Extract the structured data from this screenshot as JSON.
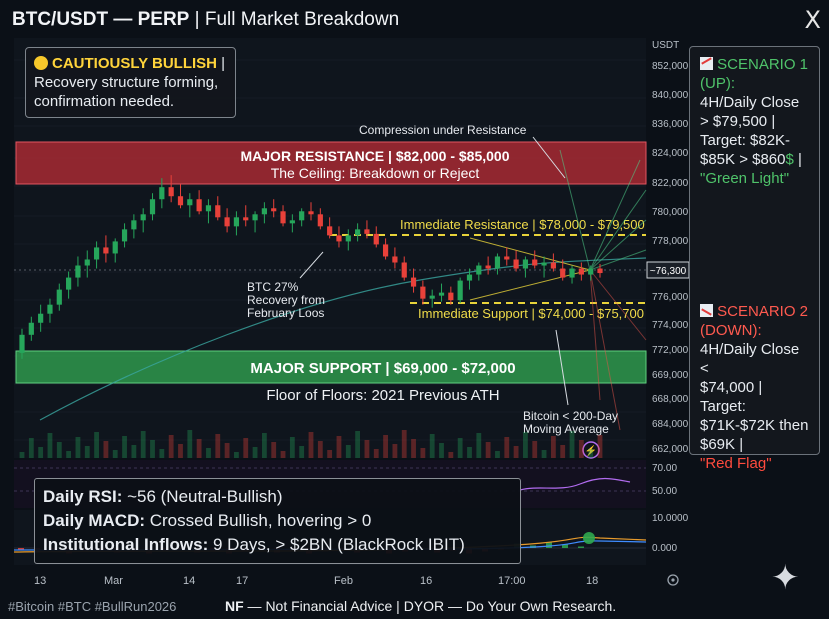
{
  "header": {
    "title_bold": "BTC/USDT — PERP",
    "title_rest": " | Full Market Breakdown",
    "x_logo": "X"
  },
  "sentiment": {
    "icon": "yellow-circle-icon",
    "label": "CAUTIOUSLY BULLISH",
    "sep": " |",
    "line1": "Recovery structure forming,",
    "line2": "confirmation needed."
  },
  "scenario_up": {
    "icon": "chart-up-icon",
    "head1": "SCENARIO 1",
    "head2": "(UP):",
    "line1": "4H/Daily Close",
    "line2": "> $79,500 |",
    "line3": "Target: $82K-",
    "line4a": "$85K > $860",
    "line4b": "$",
    "line4c": " |",
    "tag": "\"Green Light\""
  },
  "scenario_down": {
    "icon": "chart-down-icon",
    "head1": "SCENARIO 2",
    "head2": "(DOWN):",
    "line1": "4H/Daily Close <",
    "line2": "$74,000 | Target:",
    "line3": "$71K-$72K then",
    "line4": "$69K |",
    "tag": "\"Red Flag\""
  },
  "indicators": {
    "rsi_label": "Daily RSI:",
    "rsi_value": " ~56 (Neutral-Bullish)",
    "macd_label": "Daily MACD:",
    "macd_value": " Crossed Bullish, hovering > 0",
    "inflow_label": "Institutional Inflows:",
    "inflow_value": " 9 Days, > $2BN (BlackRock IBIT)"
  },
  "footer": {
    "tags": "#Bitcoin #BTC #BullRun2026",
    "nf_bold": "NF",
    "nf_rest": " — Not Financial Advice | DYOR — Do Your Own Research."
  },
  "colors": {
    "background": "#0b1017",
    "bull": "#26a65b",
    "bear": "#e8413a",
    "resistance_zone": "#c0313a",
    "support_zone": "#2d9a4c",
    "dashed": "#e8d33a",
    "scenario_up": "#4fc36a",
    "scenario_down": "#ff5a4f"
  },
  "chart_data": {
    "type": "candlestick",
    "instrument": "BTC/USDT — PERP",
    "price_axis_label": "USDT",
    "price_ticks": [
      "852,000",
      "840,000",
      "836,000",
      "824,000",
      "822,000",
      "780,000",
      "778,000",
      "776,000",
      "774,000",
      "772,000",
      "669,000",
      "668,000",
      "684,000",
      "662,000"
    ],
    "current_price_label": "~76,300",
    "time_ticks": [
      "13",
      "Mar",
      "14",
      "17",
      "Feb",
      "16",
      "17:00",
      "18"
    ],
    "zones": [
      {
        "name": "resistance",
        "title": "MAJOR RESISTANCE | $82,000 - $85,000",
        "subtitle": "The Ceiling: Breakdown or Reject",
        "low": 82000,
        "high": 85000
      },
      {
        "name": "support",
        "title": "MAJOR SUPPORT | $69,000 - $72,000",
        "subtitle": "Floor of Floors: 2021 Previous ATH",
        "low": 69000,
        "high": 72000
      }
    ],
    "levels": [
      {
        "name": "immediate-resistance",
        "label": "Immediate Resistance | $78,000 - $79,500",
        "value": 79500
      },
      {
        "name": "immediate-support",
        "label": "Immediate Support | $74,000 - $75,700",
        "value": 75700
      }
    ],
    "annotations": [
      {
        "name": "compression",
        "text": "Compression under Resistance"
      },
      {
        "name": "recovery",
        "text": [
          "BTC 27%",
          "Recovery from",
          "February Loos"
        ]
      },
      {
        "name": "ma200",
        "text": [
          "Bitcoin < 200-Day",
          "Moving Average"
        ]
      }
    ],
    "ohlc": [
      [
        71.0,
        72.6,
        70.6,
        72.2
      ],
      [
        72.2,
        73.4,
        71.8,
        73.0
      ],
      [
        73.0,
        74.2,
        72.4,
        73.6
      ],
      [
        73.6,
        74.6,
        73.0,
        74.2
      ],
      [
        74.2,
        75.6,
        73.8,
        75.2
      ],
      [
        75.2,
        76.4,
        74.6,
        76.0
      ],
      [
        76.0,
        77.4,
        75.4,
        76.8
      ],
      [
        76.8,
        77.8,
        76.0,
        77.2
      ],
      [
        77.2,
        78.4,
        76.6,
        78.0
      ],
      [
        78.0,
        78.8,
        77.0,
        77.6
      ],
      [
        77.6,
        78.6,
        77.0,
        78.4
      ],
      [
        78.4,
        79.6,
        78.0,
        79.2
      ],
      [
        79.2,
        80.2,
        78.6,
        79.8
      ],
      [
        79.8,
        80.6,
        79.0,
        80.2
      ],
      [
        80.2,
        81.6,
        79.8,
        81.2
      ],
      [
        81.2,
        82.6,
        80.6,
        82.0
      ],
      [
        82.0,
        82.8,
        81.0,
        81.4
      ],
      [
        81.4,
        82.2,
        80.6,
        80.8
      ],
      [
        80.8,
        81.6,
        80.0,
        81.2
      ],
      [
        81.2,
        81.8,
        80.2,
        80.4
      ],
      [
        80.4,
        81.2,
        79.6,
        80.8
      ],
      [
        80.8,
        81.4,
        79.8,
        80.0
      ],
      [
        80.0,
        80.6,
        79.0,
        79.4
      ],
      [
        79.4,
        80.4,
        78.8,
        80.0
      ],
      [
        80.0,
        80.8,
        79.4,
        79.8
      ],
      [
        79.8,
        80.4,
        79.0,
        80.2
      ],
      [
        80.2,
        81.0,
        79.6,
        80.6
      ],
      [
        80.6,
        81.2,
        80.0,
        80.4
      ],
      [
        80.4,
        80.8,
        79.4,
        79.6
      ],
      [
        79.6,
        80.2,
        79.0,
        79.8
      ],
      [
        79.8,
        80.6,
        79.4,
        80.4
      ],
      [
        80.4,
        81.0,
        79.8,
        80.2
      ],
      [
        80.2,
        80.6,
        79.2,
        79.4
      ],
      [
        79.4,
        80.0,
        78.6,
        78.8
      ],
      [
        78.8,
        79.4,
        78.0,
        78.4
      ],
      [
        78.4,
        79.2,
        77.8,
        78.8
      ],
      [
        78.8,
        79.6,
        78.4,
        79.2
      ],
      [
        79.2,
        79.8,
        78.6,
        78.9
      ],
      [
        78.9,
        79.4,
        78.0,
        78.2
      ],
      [
        78.2,
        78.6,
        77.2,
        77.4
      ],
      [
        77.4,
        78.0,
        76.6,
        77.0
      ],
      [
        77.0,
        77.4,
        75.8,
        76.0
      ],
      [
        76.0,
        76.6,
        75.0,
        75.4
      ],
      [
        75.4,
        75.8,
        74.2,
        74.6
      ],
      [
        74.6,
        75.2,
        74.0,
        74.8
      ],
      [
        74.8,
        75.6,
        74.4,
        75.0
      ],
      [
        75.0,
        75.4,
        74.2,
        74.5
      ],
      [
        74.5,
        76.0,
        74.3,
        75.8
      ],
      [
        75.8,
        76.6,
        75.2,
        76.2
      ],
      [
        76.2,
        77.0,
        75.8,
        76.8
      ],
      [
        76.8,
        77.4,
        76.2,
        76.6
      ],
      [
        76.6,
        77.6,
        76.2,
        77.4
      ],
      [
        77.4,
        78.0,
        76.8,
        77.2
      ],
      [
        77.2,
        77.8,
        76.4,
        76.6
      ],
      [
        76.6,
        77.4,
        76.0,
        77.2
      ],
      [
        77.2,
        77.8,
        76.6,
        76.8
      ],
      [
        76.8,
        77.4,
        76.0,
        77.0
      ],
      [
        77.0,
        77.6,
        76.4,
        76.6
      ],
      [
        76.6,
        77.2,
        75.8,
        76.0
      ],
      [
        76.0,
        76.8,
        75.6,
        76.6
      ],
      [
        76.6,
        77.0,
        75.8,
        76.2
      ],
      [
        76.2,
        76.8,
        75.8,
        76.6
      ],
      [
        76.6,
        76.9,
        76.0,
        76.3
      ]
    ],
    "volume_scale": "relative",
    "rsi": {
      "ticks": [
        "70.00",
        "50.00"
      ],
      "value": 56
    },
    "macd": {
      "ticks": [
        "10.0000",
        "0.000"
      ]
    }
  }
}
